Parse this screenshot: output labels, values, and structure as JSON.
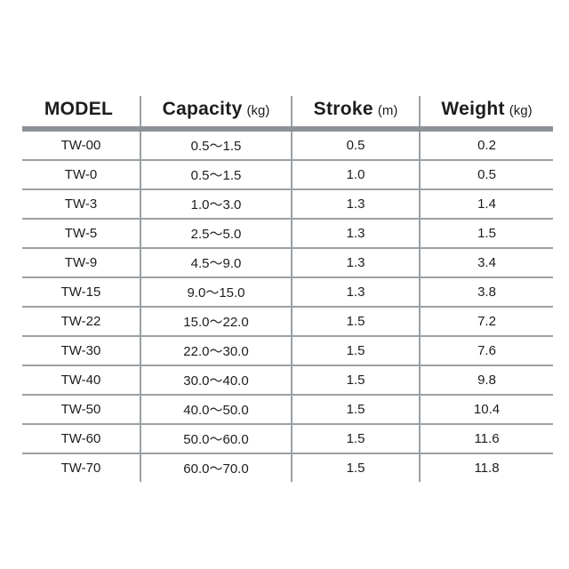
{
  "table": {
    "columns": [
      {
        "label": "MODEL",
        "unit": ""
      },
      {
        "label": "Capacity",
        "unit": "(kg)"
      },
      {
        "label": "Stroke",
        "unit": "(m)"
      },
      {
        "label": "Weight",
        "unit": "(kg)"
      }
    ],
    "rows": [
      {
        "model": "TW-00",
        "capacity": "0.5〜1.5",
        "stroke": "0.5",
        "weight": "0.2"
      },
      {
        "model": "TW-0",
        "capacity": "0.5〜1.5",
        "stroke": "1.0",
        "weight": "0.5"
      },
      {
        "model": "TW-3",
        "capacity": "1.0〜3.0",
        "stroke": "1.3",
        "weight": "1.4"
      },
      {
        "model": "TW-5",
        "capacity": "2.5〜5.0",
        "stroke": "1.3",
        "weight": "1.5"
      },
      {
        "model": "TW-9",
        "capacity": "4.5〜9.0",
        "stroke": "1.3",
        "weight": "3.4"
      },
      {
        "model": "TW-15",
        "capacity": "9.0〜15.0",
        "stroke": "1.3",
        "weight": "3.8"
      },
      {
        "model": "TW-22",
        "capacity": "15.0〜22.0",
        "stroke": "1.5",
        "weight": "7.2"
      },
      {
        "model": "TW-30",
        "capacity": "22.0〜30.0",
        "stroke": "1.5",
        "weight": "7.6"
      },
      {
        "model": "TW-40",
        "capacity": "30.0〜40.0",
        "stroke": "1.5",
        "weight": "9.8"
      },
      {
        "model": "TW-50",
        "capacity": "40.0〜50.0",
        "stroke": "1.5",
        "weight": "10.4"
      },
      {
        "model": "TW-60",
        "capacity": "50.0〜60.0",
        "stroke": "1.5",
        "weight": "11.6"
      },
      {
        "model": "TW-70",
        "capacity": "60.0〜70.0",
        "stroke": "1.5",
        "weight": "11.8"
      }
    ]
  },
  "colors": {
    "background": "#ffffff",
    "header_rule": "#8d9296",
    "grid_line": "#9aa0a4",
    "text": "#1d1d1d"
  }
}
